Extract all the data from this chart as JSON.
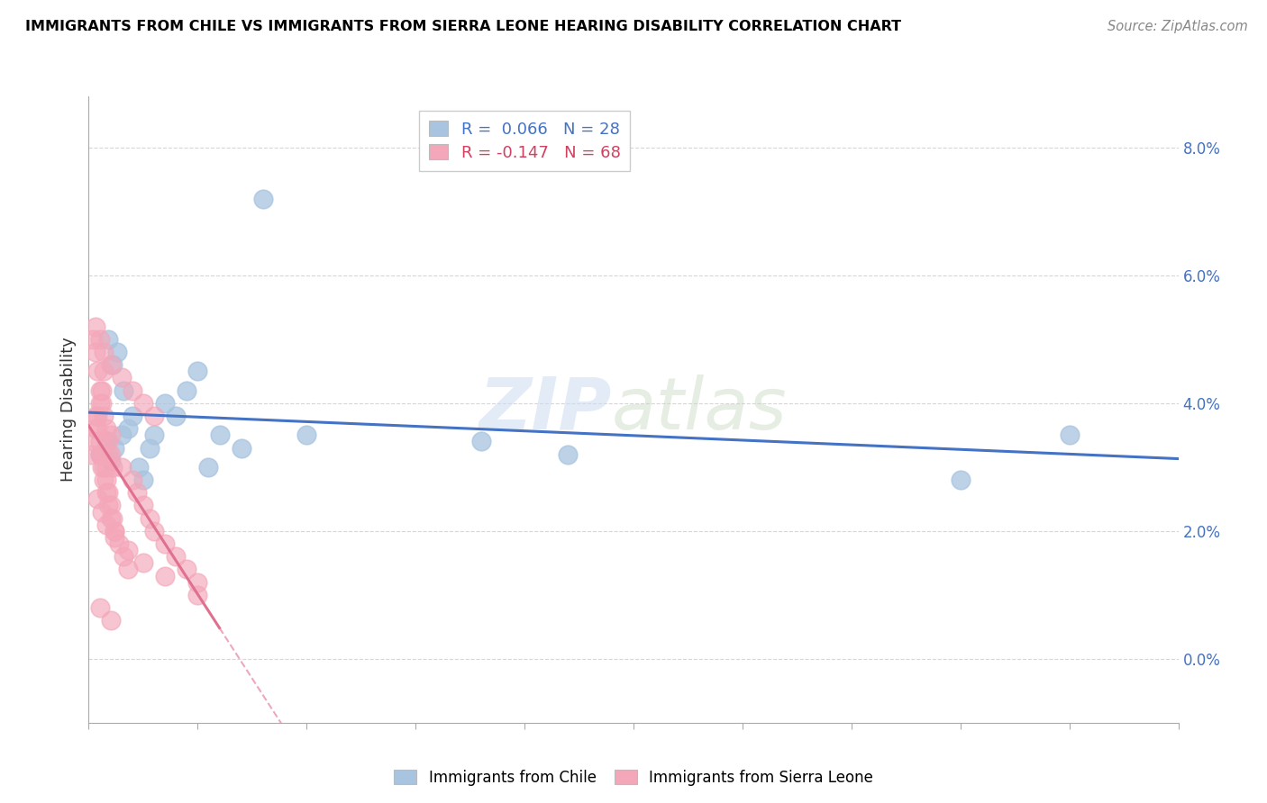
{
  "title": "IMMIGRANTS FROM CHILE VS IMMIGRANTS FROM SIERRA LEONE HEARING DISABILITY CORRELATION CHART",
  "source": "Source: ZipAtlas.com",
  "ylabel": "Hearing Disability",
  "ytick_vals": [
    0.0,
    2.0,
    4.0,
    6.0,
    8.0
  ],
  "xmin": 0.0,
  "xmax": 50.0,
  "ymin": -1.0,
  "ymax": 8.8,
  "legend_chile": "R =  0.066   N = 28",
  "legend_sierra": "R = -0.147   N = 68",
  "chile_color": "#a8c4e0",
  "sierra_color": "#f4a7b9",
  "chile_line_color": "#4472c4",
  "sierra_line_color": "#e07090",
  "sierra_line_solid_end": 6.0,
  "watermark_zip": "ZIP",
  "watermark_atlas": "atlas",
  "chile_scatter_x": [
    0.5,
    0.8,
    1.0,
    1.2,
    1.5,
    1.8,
    1.3,
    1.1,
    0.9,
    1.6,
    2.0,
    2.3,
    2.5,
    2.8,
    3.0,
    3.5,
    4.0,
    4.5,
    5.0,
    5.5,
    6.0,
    7.0,
    8.0,
    10.0,
    18.0,
    22.0,
    40.0,
    45.0
  ],
  "chile_scatter_y": [
    3.2,
    3.4,
    3.1,
    3.3,
    3.5,
    3.6,
    4.8,
    4.6,
    5.0,
    4.2,
    3.8,
    3.0,
    2.8,
    3.3,
    3.5,
    4.0,
    3.8,
    4.2,
    4.5,
    3.0,
    3.5,
    3.3,
    7.2,
    3.5,
    3.4,
    3.2,
    2.8,
    3.5
  ],
  "sierra_scatter_x": [
    0.1,
    0.2,
    0.3,
    0.4,
    0.5,
    0.6,
    0.7,
    0.8,
    0.9,
    1.0,
    0.2,
    0.3,
    0.4,
    0.5,
    0.6,
    0.7,
    0.8,
    0.9,
    1.0,
    1.1,
    0.3,
    0.4,
    0.5,
    0.6,
    0.7,
    0.8,
    0.9,
    1.0,
    1.1,
    1.2,
    0.5,
    0.6,
    0.7,
    0.8,
    0.9,
    1.0,
    1.2,
    1.4,
    1.6,
    1.8,
    2.0,
    2.2,
    2.5,
    2.8,
    3.0,
    3.5,
    4.0,
    4.5,
    5.0,
    1.5,
    0.3,
    0.5,
    0.7,
    1.0,
    1.5,
    2.0,
    2.5,
    3.0,
    0.4,
    0.6,
    0.8,
    1.2,
    1.8,
    2.5,
    3.5,
    5.0,
    0.5,
    1.0
  ],
  "sierra_scatter_y": [
    3.2,
    3.4,
    3.6,
    3.8,
    4.0,
    4.2,
    4.5,
    3.0,
    3.2,
    3.5,
    5.0,
    4.8,
    4.5,
    4.2,
    4.0,
    3.8,
    3.6,
    3.4,
    3.2,
    3.0,
    3.8,
    3.6,
    3.4,
    3.2,
    3.0,
    2.8,
    2.6,
    2.4,
    2.2,
    2.0,
    3.2,
    3.0,
    2.8,
    2.6,
    2.4,
    2.2,
    2.0,
    1.8,
    1.6,
    1.4,
    2.8,
    2.6,
    2.4,
    2.2,
    2.0,
    1.8,
    1.6,
    1.4,
    1.2,
    3.0,
    5.2,
    5.0,
    4.8,
    4.6,
    4.4,
    4.2,
    4.0,
    3.8,
    2.5,
    2.3,
    2.1,
    1.9,
    1.7,
    1.5,
    1.3,
    1.0,
    0.8,
    0.6
  ]
}
